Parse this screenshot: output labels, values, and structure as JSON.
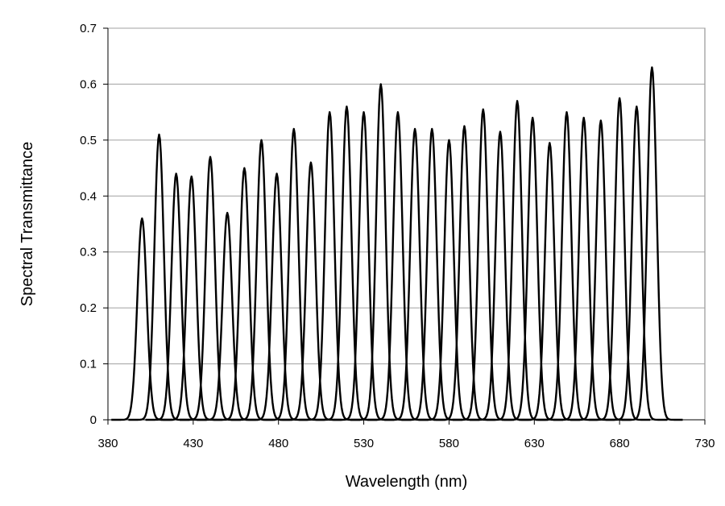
{
  "chart_data": {
    "type": "line",
    "title": "",
    "xlabel": "Wavelength (nm)",
    "ylabel": "Spectral Transmittance",
    "xlim": [
      380,
      730
    ],
    "ylim": [
      0,
      0.7
    ],
    "x_ticks": [
      380,
      430,
      480,
      530,
      580,
      630,
      680,
      730
    ],
    "y_ticks": [
      0,
      0.1,
      0.2,
      0.3,
      0.4,
      0.5,
      0.6,
      0.7
    ],
    "y_tick_labels": [
      "0",
      "0.1",
      "0.2",
      "0.3",
      "0.4",
      "0.5",
      "0.6",
      "0.7"
    ],
    "grid": "horizontal",
    "legend": "none",
    "line_color": "#000000",
    "peak_shape": "gaussian",
    "peak_fwhm_nm": 6.5,
    "series": [
      {
        "peak_wavelength": 400,
        "peak_value": 0.36
      },
      {
        "peak_wavelength": 410,
        "peak_value": 0.51
      },
      {
        "peak_wavelength": 420,
        "peak_value": 0.44
      },
      {
        "peak_wavelength": 429,
        "peak_value": 0.435
      },
      {
        "peak_wavelength": 440,
        "peak_value": 0.47
      },
      {
        "peak_wavelength": 450,
        "peak_value": 0.37
      },
      {
        "peak_wavelength": 460,
        "peak_value": 0.45
      },
      {
        "peak_wavelength": 470,
        "peak_value": 0.5
      },
      {
        "peak_wavelength": 479,
        "peak_value": 0.44
      },
      {
        "peak_wavelength": 489,
        "peak_value": 0.52
      },
      {
        "peak_wavelength": 499,
        "peak_value": 0.46
      },
      {
        "peak_wavelength": 510,
        "peak_value": 0.55
      },
      {
        "peak_wavelength": 520,
        "peak_value": 0.56
      },
      {
        "peak_wavelength": 530,
        "peak_value": 0.55
      },
      {
        "peak_wavelength": 540,
        "peak_value": 0.6
      },
      {
        "peak_wavelength": 550,
        "peak_value": 0.55
      },
      {
        "peak_wavelength": 560,
        "peak_value": 0.52
      },
      {
        "peak_wavelength": 570,
        "peak_value": 0.52
      },
      {
        "peak_wavelength": 580,
        "peak_value": 0.5
      },
      {
        "peak_wavelength": 589,
        "peak_value": 0.525
      },
      {
        "peak_wavelength": 600,
        "peak_value": 0.555
      },
      {
        "peak_wavelength": 610,
        "peak_value": 0.515
      },
      {
        "peak_wavelength": 620,
        "peak_value": 0.57
      },
      {
        "peak_wavelength": 629,
        "peak_value": 0.54
      },
      {
        "peak_wavelength": 639,
        "peak_value": 0.495
      },
      {
        "peak_wavelength": 649,
        "peak_value": 0.55
      },
      {
        "peak_wavelength": 659,
        "peak_value": 0.54
      },
      {
        "peak_wavelength": 669,
        "peak_value": 0.535
      },
      {
        "peak_wavelength": 680,
        "peak_value": 0.575
      },
      {
        "peak_wavelength": 690,
        "peak_value": 0.56
      },
      {
        "peak_wavelength": 699,
        "peak_value": 0.63
      }
    ]
  }
}
